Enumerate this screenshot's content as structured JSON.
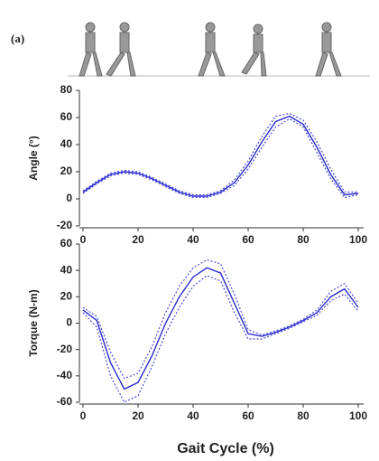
{
  "figure_label": "(a)",
  "x_label": "Gait Cycle (%)",
  "chart_data": [
    {
      "type": "line",
      "y_label": "Angle (°)",
      "x": [
        0,
        5,
        10,
        15,
        20,
        25,
        30,
        35,
        40,
        45,
        50,
        55,
        60,
        65,
        70,
        75,
        80,
        85,
        90,
        95,
        100
      ],
      "series": [
        {
          "color": "#2a2acc",
          "line_style": "solid",
          "values": [
            5,
            12,
            18,
            20,
            19,
            15,
            10,
            5,
            2,
            2,
            5,
            12,
            25,
            42,
            57,
            61,
            55,
            38,
            18,
            3,
            4
          ]
        },
        {
          "color": "#4a4ae0",
          "line_style": "dotted",
          "values": [
            6,
            13,
            19,
            21,
            20,
            16,
            11,
            6,
            3,
            3,
            6,
            14,
            28,
            46,
            61,
            63,
            58,
            42,
            22,
            5,
            5
          ]
        },
        {
          "color": "#4a4ae0",
          "line_style": "dotted",
          "values": [
            4,
            11,
            17,
            19,
            18,
            14,
            9,
            4,
            1,
            1,
            4,
            10,
            22,
            38,
            53,
            59,
            53,
            34,
            15,
            1,
            3
          ]
        }
      ],
      "xlim": [
        0,
        100
      ],
      "xticks": [
        0,
        20,
        40,
        60,
        80,
        100
      ],
      "ylim": [
        -20,
        80
      ],
      "yticks": [
        -20,
        0,
        20,
        40,
        60,
        80
      ]
    },
    {
      "type": "line",
      "y_label": "Torque (N-m)",
      "x": [
        0,
        5,
        10,
        15,
        20,
        25,
        30,
        35,
        40,
        45,
        50,
        55,
        60,
        65,
        70,
        75,
        80,
        85,
        90,
        95,
        100
      ],
      "series": [
        {
          "color": "#2a2acc",
          "line_style": "solid",
          "values": [
            10,
            2,
            -30,
            -50,
            -45,
            -25,
            0,
            20,
            35,
            42,
            38,
            15,
            -8,
            -10,
            -7,
            -3,
            2,
            8,
            20,
            26,
            12
          ]
        },
        {
          "color": "#4a4ae0",
          "line_style": "dotted",
          "values": [
            12,
            5,
            -22,
            -42,
            -38,
            -18,
            8,
            28,
            42,
            48,
            45,
            22,
            -5,
            -9,
            -6,
            -2,
            3,
            10,
            24,
            30,
            15
          ]
        },
        {
          "color": "#4a4ae0",
          "line_style": "dotted",
          "values": [
            8,
            -3,
            -40,
            -60,
            -55,
            -33,
            -8,
            12,
            28,
            36,
            32,
            8,
            -12,
            -12,
            -8,
            -4,
            1,
            6,
            17,
            22,
            9
          ]
        }
      ],
      "xlim": [
        0,
        100
      ],
      "xticks": [
        0,
        20,
        40,
        60,
        80,
        100
      ],
      "ylim": [
        -60,
        60
      ],
      "yticks": [
        -60,
        -40,
        -20,
        0,
        20,
        40,
        60
      ]
    }
  ]
}
